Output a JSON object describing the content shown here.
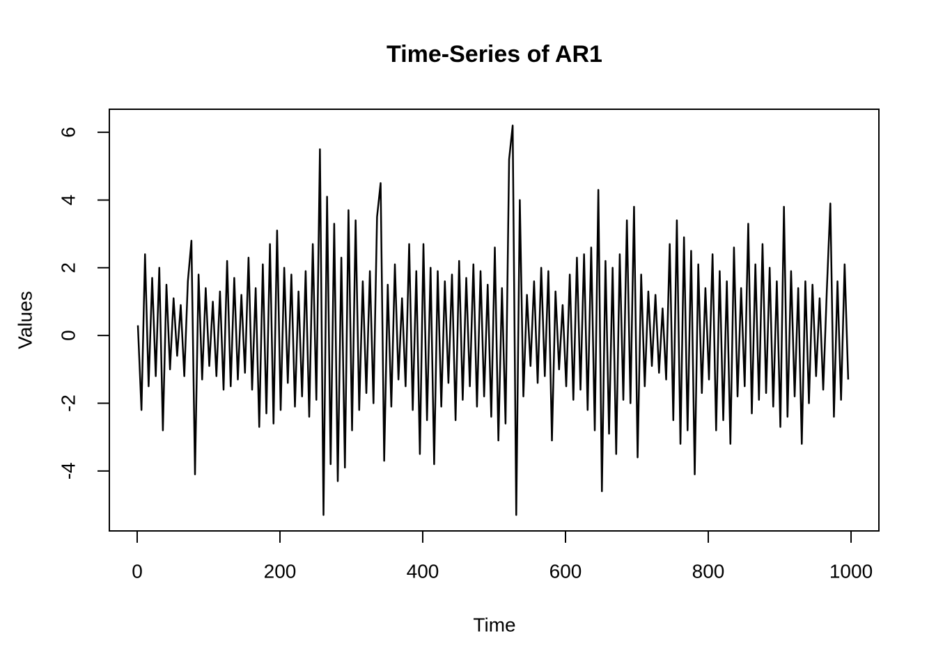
{
  "chart_data": {
    "type": "line",
    "title": "Time-Series of AR1",
    "x_label": "Time",
    "y_label": "Values",
    "color": "#000000",
    "x": [
      1,
      6,
      11,
      16,
      21,
      26,
      31,
      36,
      41,
      46,
      51,
      56,
      61,
      66,
      71,
      76,
      81,
      86,
      91,
      96,
      101,
      106,
      111,
      116,
      121,
      126,
      131,
      136,
      141,
      146,
      151,
      156,
      161,
      166,
      171,
      176,
      181,
      186,
      191,
      196,
      201,
      206,
      211,
      216,
      221,
      226,
      231,
      236,
      241,
      246,
      251,
      256,
      261,
      266,
      271,
      276,
      281,
      286,
      291,
      296,
      301,
      306,
      311,
      316,
      321,
      326,
      331,
      336,
      341,
      346,
      351,
      356,
      361,
      366,
      371,
      376,
      381,
      386,
      391,
      396,
      401,
      406,
      411,
      416,
      421,
      426,
      431,
      436,
      441,
      446,
      451,
      456,
      461,
      466,
      471,
      476,
      481,
      486,
      491,
      496,
      501,
      506,
      511,
      516,
      521,
      526,
      531,
      536,
      541,
      546,
      551,
      556,
      561,
      566,
      571,
      576,
      581,
      586,
      591,
      596,
      601,
      606,
      611,
      616,
      621,
      626,
      631,
      636,
      641,
      646,
      651,
      656,
      661,
      666,
      671,
      676,
      681,
      686,
      691,
      696,
      701,
      706,
      711,
      716,
      721,
      726,
      731,
      736,
      741,
      746,
      751,
      756,
      761,
      766,
      771,
      776,
      781,
      786,
      791,
      796,
      801,
      806,
      811,
      816,
      821,
      826,
      831,
      836,
      841,
      846,
      851,
      856,
      861,
      866,
      871,
      876,
      881,
      886,
      891,
      896,
      901,
      906,
      911,
      916,
      921,
      926,
      931,
      936,
      941,
      946,
      951,
      956,
      961,
      966,
      971,
      976,
      981,
      986,
      991,
      996
    ],
    "values": [
      0.3,
      -2.2,
      2.4,
      -1.5,
      1.7,
      -1.2,
      2.0,
      -2.8,
      1.5,
      -1.0,
      1.1,
      -0.6,
      0.9,
      -1.2,
      1.6,
      2.8,
      -4.1,
      1.8,
      -1.3,
      1.4,
      -0.9,
      1.0,
      -1.2,
      1.3,
      -1.6,
      2.2,
      -1.5,
      1.7,
      -1.3,
      1.2,
      -1.1,
      2.3,
      -1.6,
      1.4,
      -2.7,
      2.1,
      -2.3,
      2.7,
      -2.6,
      3.1,
      -2.2,
      2.0,
      -1.4,
      1.8,
      -2.1,
      1.3,
      -1.8,
      1.9,
      -2.4,
      2.7,
      -1.9,
      5.5,
      -5.3,
      4.1,
      -3.8,
      3.3,
      -4.3,
      2.3,
      -3.9,
      3.7,
      -2.8,
      3.4,
      -2.2,
      1.6,
      -1.7,
      1.9,
      -2.0,
      3.5,
      4.5,
      -3.7,
      1.5,
      -2.1,
      2.1,
      -1.3,
      1.1,
      -1.5,
      2.7,
      -2.2,
      1.9,
      -3.5,
      2.7,
      -2.5,
      2.0,
      -3.8,
      1.9,
      -2.1,
      1.6,
      -1.4,
      1.8,
      -2.5,
      2.2,
      -1.9,
      1.7,
      -1.5,
      2.1,
      -2.1,
      1.9,
      -1.8,
      1.5,
      -2.4,
      2.6,
      -3.1,
      1.4,
      -2.6,
      5.2,
      6.2,
      -5.3,
      4.0,
      -1.8,
      1.2,
      -0.9,
      1.6,
      -1.4,
      2.0,
      -1.2,
      1.9,
      -3.1,
      1.3,
      -1.0,
      0.9,
      -1.5,
      1.8,
      -1.9,
      2.3,
      -1.6,
      2.4,
      -2.2,
      2.6,
      -2.8,
      4.3,
      -4.6,
      2.2,
      -2.9,
      2.0,
      -3.5,
      2.4,
      -1.9,
      3.4,
      -2.0,
      3.8,
      -3.6,
      1.8,
      -1.5,
      1.3,
      -0.9,
      1.2,
      -1.1,
      0.8,
      -1.3,
      2.7,
      -2.5,
      3.4,
      -3.2,
      2.9,
      -2.8,
      2.5,
      -4.1,
      2.1,
      -1.7,
      1.4,
      -1.3,
      2.4,
      -2.8,
      1.9,
      -2.5,
      1.6,
      -3.2,
      2.6,
      -1.8,
      1.4,
      -1.5,
      3.3,
      -2.3,
      2.1,
      -1.9,
      2.7,
      -1.7,
      2.0,
      -2.1,
      1.6,
      -2.7,
      3.8,
      -2.4,
      1.9,
      -1.8,
      1.4,
      -3.2,
      1.6,
      -2.0,
      1.5,
      -1.2,
      1.1,
      -1.6,
      1.3,
      3.9,
      -2.4,
      1.6,
      -1.9,
      2.1,
      -1.3
    ],
    "xlim": [
      -39,
      1039
    ],
    "ylim": [
      -5.77,
      6.68
    ],
    "xticks": [
      0,
      200,
      400,
      600,
      800,
      1000
    ],
    "yticks": [
      -4,
      -2,
      0,
      2,
      4,
      6
    ]
  }
}
